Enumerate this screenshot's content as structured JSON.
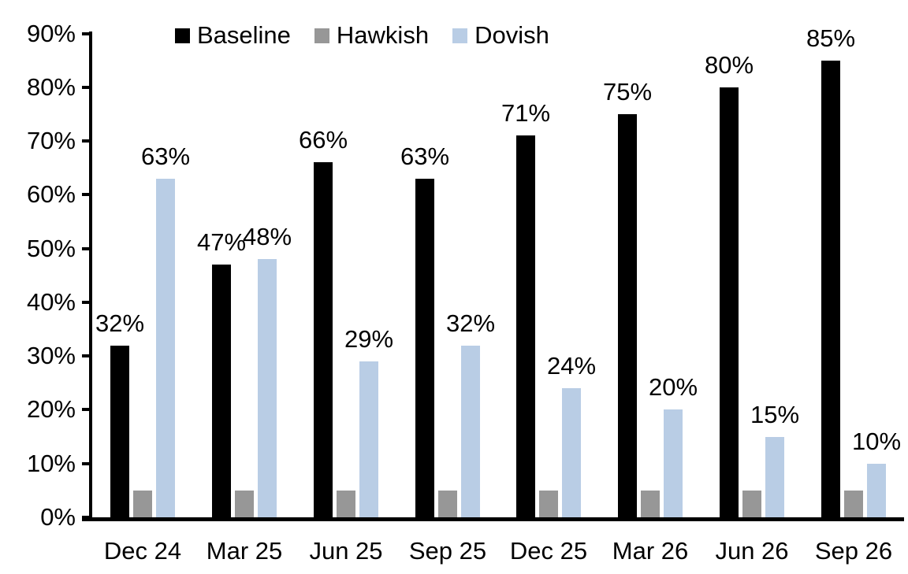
{
  "chart_data": {
    "type": "bar",
    "title": "",
    "xlabel": "",
    "ylabel": "",
    "categories": [
      "Dec 24",
      "Mar 25",
      "Jun 25",
      "Sep 25",
      "Dec 25",
      "Mar 26",
      "Jun 26",
      "Sep 26"
    ],
    "series": [
      {
        "name": "Baseline",
        "color": "#000000",
        "values": [
          32,
          47,
          66,
          63,
          71,
          75,
          80,
          85
        ],
        "data_labels_shown": true,
        "labels": [
          "32%",
          "47%",
          "66%",
          "63%",
          "71%",
          "75%",
          "80%",
          "85%"
        ]
      },
      {
        "name": "Hawkish",
        "color": "#979797",
        "values": [
          5,
          5,
          5,
          5,
          5,
          5,
          5,
          5
        ],
        "data_labels_shown": false,
        "labels": []
      },
      {
        "name": "Dovish",
        "color": "#b9cde5",
        "values": [
          63,
          48,
          29,
          32,
          24,
          20,
          15,
          10
        ],
        "data_labels_shown": true,
        "labels": [
          "63%",
          "48%",
          "29%",
          "32%",
          "24%",
          "20%",
          "15%",
          "10%"
        ]
      }
    ],
    "ylim": [
      0,
      90
    ],
    "ytick_step": 10,
    "yticks": [
      "0%",
      "10%",
      "20%",
      "30%",
      "40%",
      "50%",
      "60%",
      "70%",
      "80%",
      "90%"
    ],
    "grid": false,
    "legend_position": "top",
    "axis_color": "#000000",
    "background_color": "#ffffff"
  }
}
